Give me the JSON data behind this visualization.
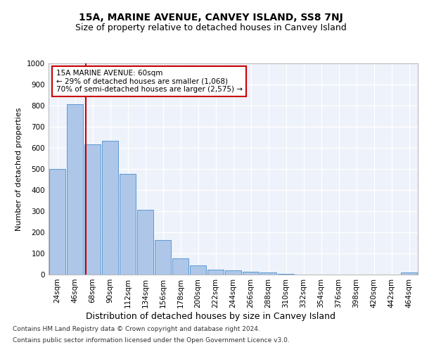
{
  "title": "15A, MARINE AVENUE, CANVEY ISLAND, SS8 7NJ",
  "subtitle": "Size of property relative to detached houses in Canvey Island",
  "xlabel": "Distribution of detached houses by size in Canvey Island",
  "ylabel": "Number of detached properties",
  "footer_line1": "Contains HM Land Registry data © Crown copyright and database right 2024.",
  "footer_line2": "Contains public sector information licensed under the Open Government Licence v3.0.",
  "bar_labels": [
    "24sqm",
    "46sqm",
    "68sqm",
    "90sqm",
    "112sqm",
    "134sqm",
    "156sqm",
    "178sqm",
    "200sqm",
    "222sqm",
    "244sqm",
    "266sqm",
    "288sqm",
    "310sqm",
    "332sqm",
    "354sqm",
    "376sqm",
    "398sqm",
    "420sqm",
    "442sqm",
    "464sqm"
  ],
  "bar_counts": [
    500,
    808,
    618,
    635,
    477,
    308,
    163,
    78,
    45,
    23,
    20,
    15,
    10,
    5,
    0,
    0,
    0,
    0,
    0,
    0,
    10
  ],
  "property_size": 60,
  "annotation_text_line1": "15A MARINE AVENUE: 60sqm",
  "annotation_text_line2": "← 29% of detached houses are smaller (1,068)",
  "annotation_text_line3": "70% of semi-detached houses are larger (2,575) →",
  "vline_color": "#cc0000",
  "bar_color": "#aec6e8",
  "bar_edge_color": "#5b9bd5",
  "bg_color": "#eef2fa",
  "annotation_box_color": "#cc0000",
  "ylim": [
    0,
    1000
  ],
  "yticks": [
    0,
    100,
    200,
    300,
    400,
    500,
    600,
    700,
    800,
    900,
    1000
  ],
  "title_fontsize": 10,
  "subtitle_fontsize": 9,
  "xlabel_fontsize": 9,
  "ylabel_fontsize": 8,
  "tick_fontsize": 7.5,
  "annotation_fontsize": 7.5,
  "footer_fontsize": 6.5
}
